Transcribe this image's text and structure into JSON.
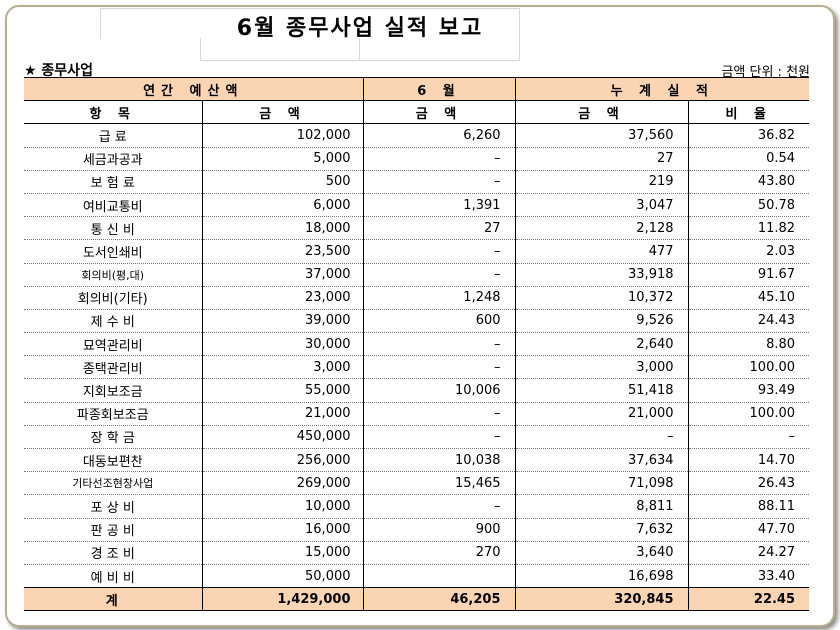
{
  "title": "6월  종무사업 실적 보고",
  "section_label": "★ 종무사업",
  "unit_label": "금액 단위 : 천원",
  "header_top": [
    "연간 예산액",
    "6 월",
    "누 계  실 적"
  ],
  "header_sub": [
    "항  목",
    "금  액",
    "금  액",
    "금  액",
    "비 율"
  ],
  "rows": [
    {
      "item": "급    료",
      "budget": "102,000",
      "june": "6,260",
      "cum": "37,560",
      "rate": "36.82"
    },
    {
      "item": "세금과공과",
      "budget": "5,000",
      "june": "–",
      "cum": "27",
      "rate": "0.54"
    },
    {
      "item": "보 험 료",
      "budget": "500",
      "june": "–",
      "cum": "219",
      "rate": "43.80"
    },
    {
      "item": "여비교통비",
      "budget": "6,000",
      "june": "1,391",
      "cum": "3,047",
      "rate": "50.78"
    },
    {
      "item": "통 신 비",
      "budget": "18,000",
      "june": "27",
      "cum": "2,128",
      "rate": "11.82"
    },
    {
      "item": "도서인쇄비",
      "budget": "23,500",
      "june": "–",
      "cum": "477",
      "rate": "2.03"
    },
    {
      "item": "회의비(평,대)",
      "budget": "37,000",
      "june": "–",
      "cum": "33,918",
      "rate": "91.67"
    },
    {
      "item": "회의비(기타)",
      "budget": "23,000",
      "june": "1,248",
      "cum": "10,372",
      "rate": "45.10"
    },
    {
      "item": "제 수 비",
      "budget": "39,000",
      "june": "600",
      "cum": "9,526",
      "rate": "24.43"
    },
    {
      "item": "묘역관리비",
      "budget": "30,000",
      "june": "–",
      "cum": "2,640",
      "rate": "8.80"
    },
    {
      "item": "종택관리비",
      "budget": "3,000",
      "june": "–",
      "cum": "3,000",
      "rate": "100.00"
    },
    {
      "item": "지회보조금",
      "budget": "55,000",
      "june": "10,006",
      "cum": "51,418",
      "rate": "93.49"
    },
    {
      "item": "파종회보조금",
      "budget": "21,000",
      "june": "–",
      "cum": "21,000",
      "rate": "100.00"
    },
    {
      "item": "장 학 금",
      "budget": "450,000",
      "june": "–",
      "cum": "–",
      "rate": "–"
    },
    {
      "item": "대동보편찬",
      "budget": "256,000",
      "june": "10,038",
      "cum": "37,634",
      "rate": "14.70"
    },
    {
      "item": "기타선조현창사업",
      "budget": "269,000",
      "june": "15,465",
      "cum": "71,098",
      "rate": "26.43"
    },
    {
      "item": "포 상 비",
      "budget": "10,000",
      "june": "–",
      "cum": "8,811",
      "rate": "88.11"
    },
    {
      "item": "판 공 비",
      "budget": "16,000",
      "june": "900",
      "cum": "7,632",
      "rate": "47.70"
    },
    {
      "item": "경 조 비",
      "budget": "15,000",
      "june": "270",
      "cum": "3,640",
      "rate": "24.27"
    },
    {
      "item": "예 비 비",
      "budget": "50,000",
      "june": "",
      "cum": "16,698",
      "rate": "33.40"
    }
  ],
  "total": {
    "item": "계",
    "budget": "1,429,000",
    "june": "46,205",
    "cum": "320,845",
    "rate": "22.45"
  },
  "colors": {
    "header_bg": "#fbd4b4",
    "frame": "#b9ad8a"
  }
}
